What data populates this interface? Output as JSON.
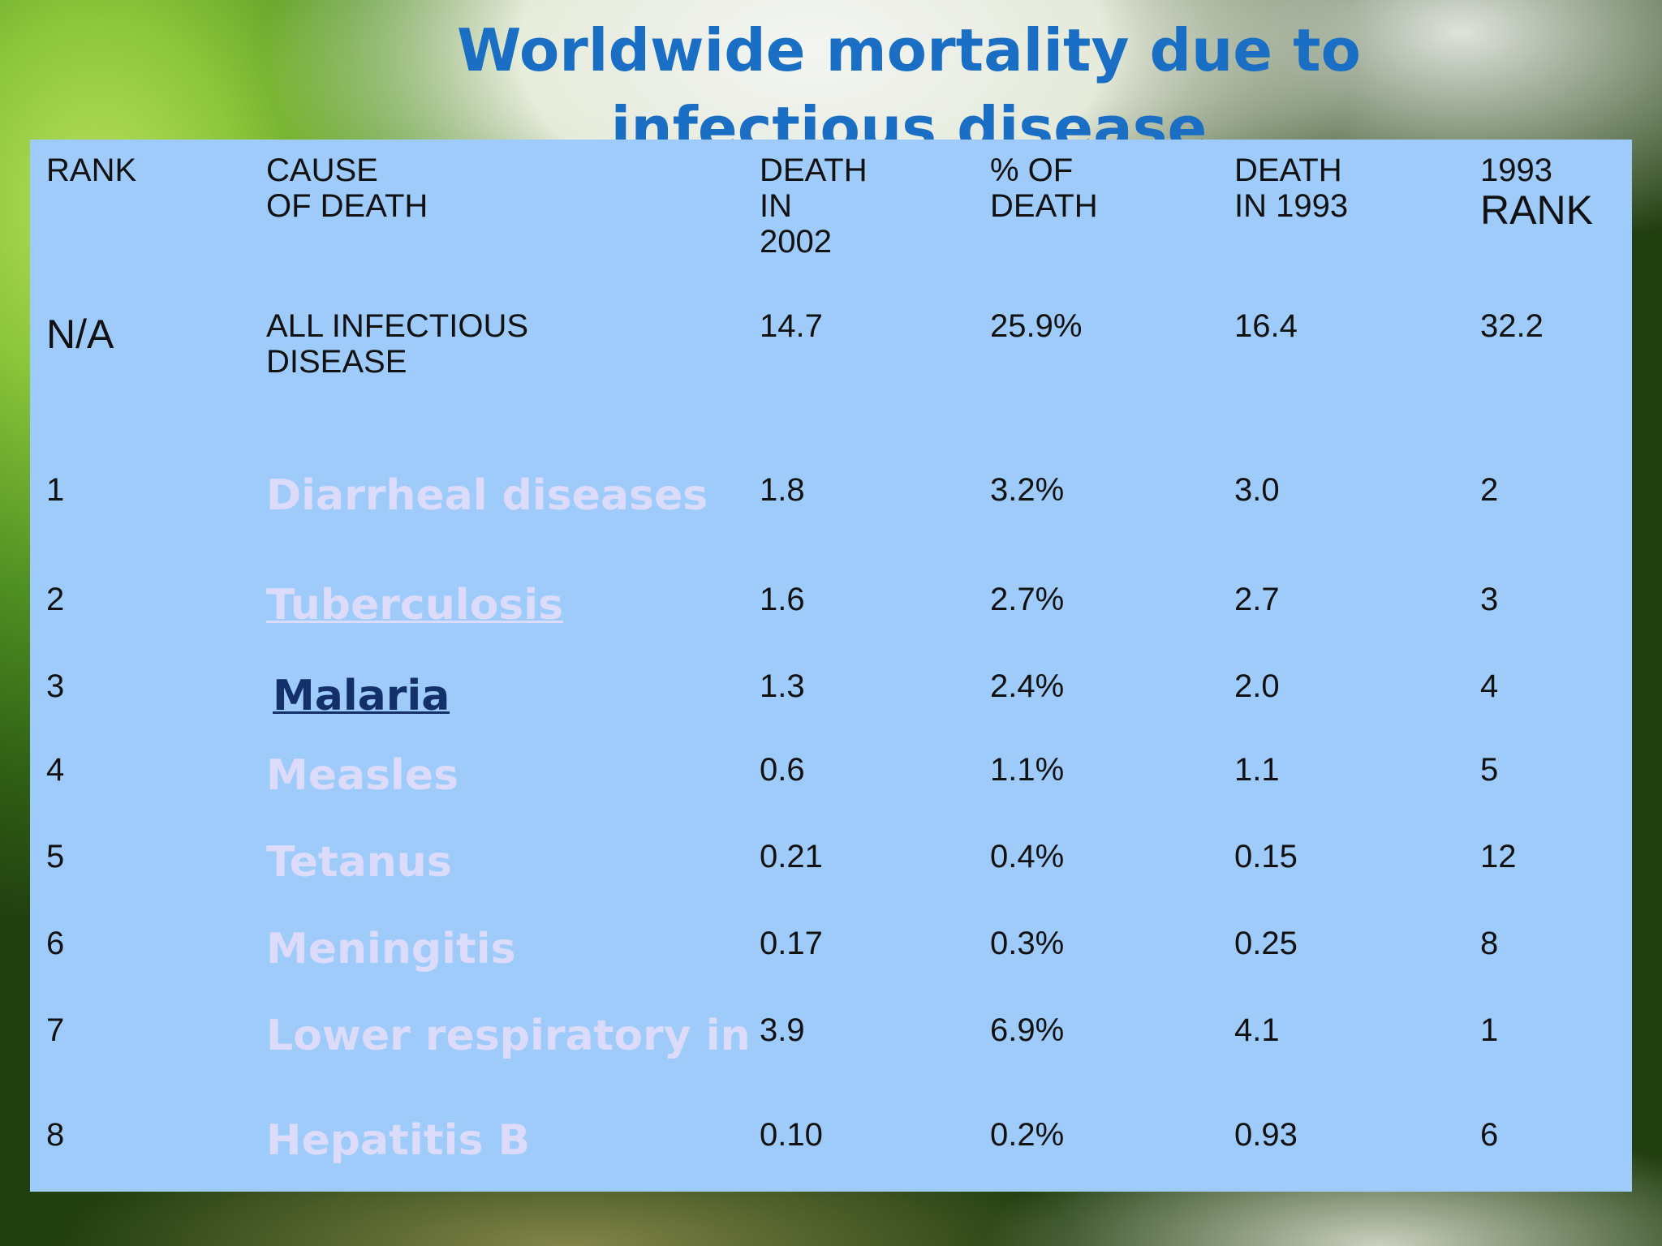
{
  "title": "Worldwide mortality due to infectious disease",
  "table": {
    "headers": {
      "rank": [
        "RANK"
      ],
      "cause": [
        "CAUSE",
        "OF DEATH"
      ],
      "death2002": [
        "DEATH",
        "IN",
        "2002"
      ],
      "pct": [
        "% OF",
        "DEATH"
      ],
      "death1993": [
        "DEATH",
        "IN 1993"
      ],
      "rank1993": [
        "1993",
        "RANK"
      ]
    },
    "all_row": {
      "rank": "N/A",
      "cause": [
        "ALL INFECTIOUS",
        "DISEASE"
      ],
      "death2002": "14.7",
      "pct": "25.9%",
      "death1993": "16.4",
      "rank1993": "32.2"
    },
    "rows": [
      {
        "rank": "1",
        "cause": "Diarrheal diseases",
        "death2002": "1.8",
        "pct": "3.2%",
        "death1993": "3.0",
        "rank1993": "2"
      },
      {
        "rank": "2",
        "cause": "Tuberculosis",
        "death2002": "1.6",
        "pct": "2.7%",
        "death1993": "2.7",
        "rank1993": "3"
      },
      {
        "rank": "3",
        "cause": "Malaria",
        "death2002": "1.3",
        "pct": "2.4%",
        "death1993": "2.0",
        "rank1993": "4"
      },
      {
        "rank": "4",
        "cause": "Measles",
        "death2002": "0.6",
        "pct": "1.1%",
        "death1993": "1.1",
        "rank1993": "5"
      },
      {
        "rank": "5",
        "cause": "Tetanus",
        "death2002": "0.21",
        "pct": "0.4%",
        "death1993": "0.15",
        "rank1993": "12"
      },
      {
        "rank": "6",
        "cause": "Meningitis",
        "death2002": "0.17",
        "pct": "0.3%",
        "death1993": "0.25",
        "rank1993": "8"
      },
      {
        "rank": "7",
        "cause": "Lower respiratory in",
        "death2002": "3.9",
        "pct": "6.9%",
        "death1993": "4.1",
        "rank1993": "1"
      },
      {
        "rank": "8",
        "cause": "Hepatitis B",
        "death2002": "0.10",
        "pct": "0.2%",
        "death1993": "0.93",
        "rank1993": "6"
      }
    ]
  },
  "colors": {
    "title": "#1a6fc4",
    "panel": "#9ecbfa",
    "cause_light": "#dcdcfa",
    "cause_link_dark": "#14306a"
  }
}
